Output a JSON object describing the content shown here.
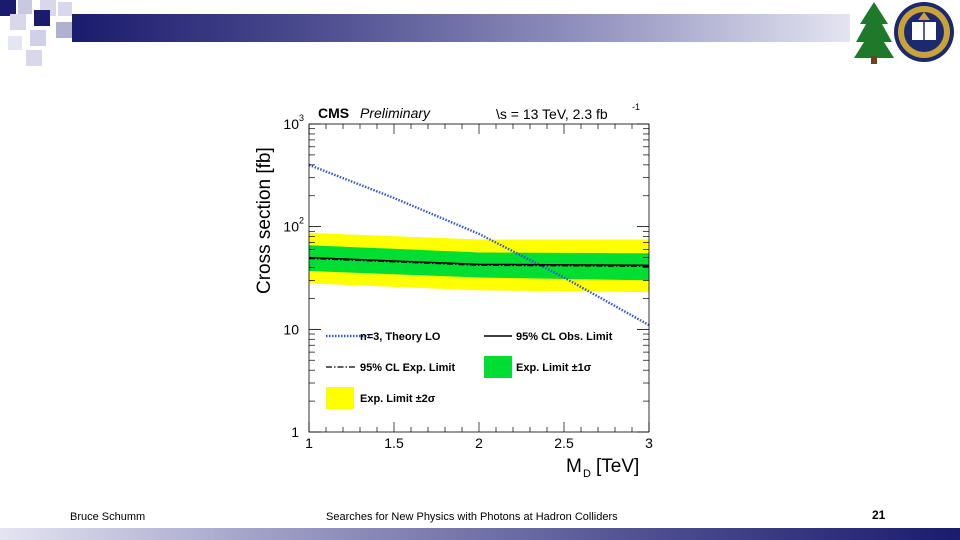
{
  "slide": {
    "footer_left": "Bruce Schumm",
    "footer_center": "Searches for New Physics with Photons at Hadron Colliders",
    "page_number": "21"
  },
  "colors": {
    "band_2sigma": "#ffff00",
    "band_1sigma": "#00dd33",
    "theory": "#3355cc",
    "observed": "#000000",
    "expected": "#000000",
    "header_dark": "#1b1b6e"
  },
  "chart_data": {
    "type": "line",
    "experiment": "CMS",
    "preliminary": "Preliminary",
    "energy_label": "\\s = 13 TeV, 2.3 fb",
    "energy_sup": "-1",
    "xlabel": "M",
    "xlabel_sub": "D",
    "xlabel_unit": "[TeV]",
    "ylabel": "Cross section [fb]",
    "xlim": [
      1,
      3
    ],
    "ylim": [
      1,
      1000
    ],
    "yscale": "log",
    "x_ticks": [
      "1",
      "1.5",
      "2",
      "2.5",
      "3"
    ],
    "y_ticks": [
      {
        "base": "1",
        "exp": ""
      },
      {
        "base": "10",
        "exp": ""
      },
      {
        "base": "10",
        "exp": "2"
      },
      {
        "base": "10",
        "exp": "3"
      }
    ],
    "x": [
      1.0,
      2.0,
      3.0
    ],
    "series": [
      {
        "name": "n=3, Theory LO",
        "style": "dotted",
        "x": [
          1.0,
          1.5,
          2.0,
          2.5,
          3.0
        ],
        "values": [
          400,
          190,
          85,
          32,
          11
        ]
      },
      {
        "name": "95% CL Obs. Limit",
        "style": "solid",
        "x": [
          1.0,
          2.0,
          3.0
        ],
        "values": [
          50,
          43,
          42
        ]
      },
      {
        "name": "95% CL Exp. Limit",
        "style": "dashdot",
        "x": [
          1.0,
          2.0,
          3.0
        ],
        "values": [
          49,
          42,
          41
        ]
      },
      {
        "name": "Exp. Limit ±1σ",
        "style": "band",
        "x": [
          1.0,
          2.0,
          3.0
        ],
        "low": [
          37,
          32,
          30
        ],
        "high": [
          66,
          56,
          55
        ]
      },
      {
        "name": "Exp. Limit ±2σ",
        "style": "band",
        "x": [
          1.0,
          2.0,
          3.0
        ],
        "low": [
          28,
          24,
          23
        ],
        "high": [
          87,
          75,
          75
        ]
      }
    ],
    "legend": [
      {
        "label": "n=3, Theory LO",
        "kind": "dotted"
      },
      {
        "label": "95% CL Obs. Limit",
        "kind": "solid"
      },
      {
        "label": "95% CL Exp. Limit",
        "kind": "dashdot"
      },
      {
        "label": "Exp. Limit ±1σ",
        "kind": "green"
      },
      {
        "label": "Exp. Limit ±2σ",
        "kind": "yellow"
      }
    ],
    "legend_position": "bottom-left",
    "grid": false
  }
}
